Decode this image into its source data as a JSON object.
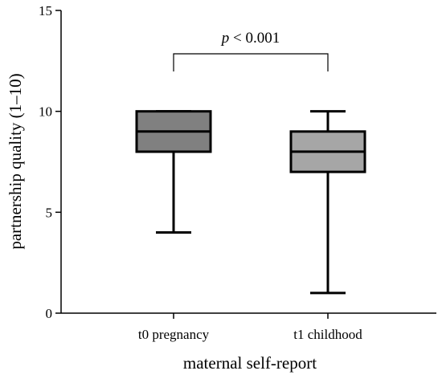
{
  "chart_data": {
    "type": "box",
    "xlabel": "maternal self-report",
    "ylabel": "partnership quality (1–10)",
    "ylim": [
      0,
      15
    ],
    "yticks": [
      0,
      5,
      10,
      15
    ],
    "categories": [
      "t0 pregnancy",
      "t1 childhood"
    ],
    "boxes": [
      {
        "category": "t0 pregnancy",
        "min": 4,
        "q1": 8,
        "median": 9,
        "q3": 10,
        "max": 10,
        "color": "#808080"
      },
      {
        "category": "t1 childhood",
        "min": 1,
        "q1": 7,
        "median": 8,
        "q3": 9,
        "max": 10,
        "color": "#a6a6a6"
      }
    ],
    "annotation": {
      "p_label": "p",
      "text": " < 0.001",
      "between": [
        "t0 pregnancy",
        "t1 childhood"
      ]
    },
    "grid": false
  }
}
